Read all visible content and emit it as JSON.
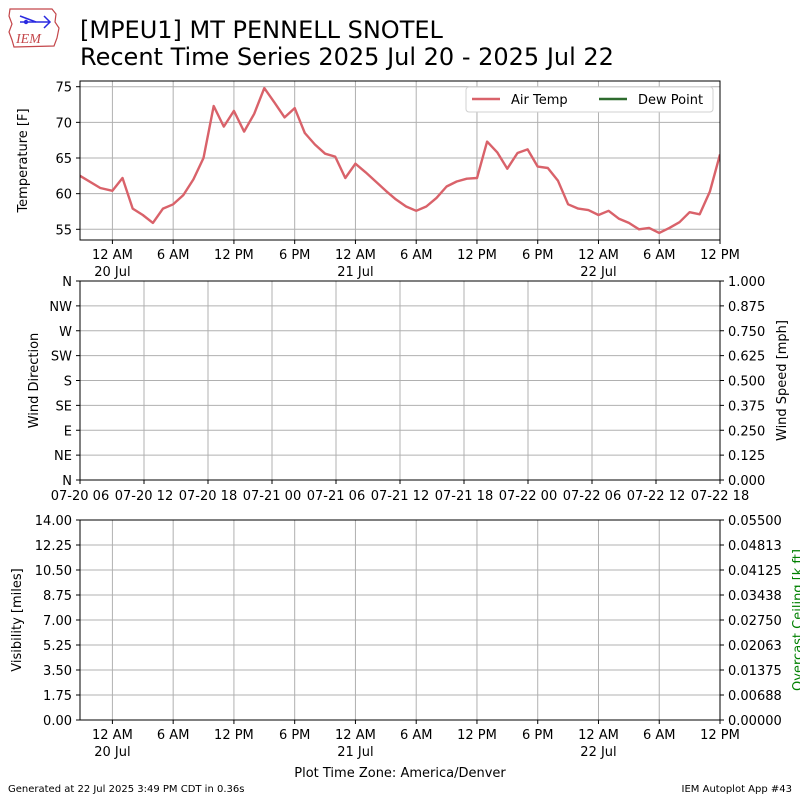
{
  "title": "[MPEU1] MT PENNELL SNOTEL",
  "subtitle": "Recent Time Series 2025 Jul 20 - 2025 Jul 22",
  "logo_text": "IEM",
  "footer_left": "Generated at 22 Jul 2025 3:49 PM CDT in 0.36s",
  "footer_right": "IEM Autoplot App #43",
  "colors": {
    "air_temp": "#d9626a",
    "dew_point": "#2e6b2e",
    "ceiling_label": "#008000",
    "grid": "#b0b0b0"
  },
  "chart_data": [
    {
      "type": "line",
      "ylabel": "Temperature [F]",
      "ylim": [
        53.5,
        75.8
      ],
      "yticks": [
        "55",
        "60",
        "65",
        "70",
        "75"
      ],
      "ytick_values": [
        55,
        60,
        65,
        70,
        75
      ],
      "xlim_hours": [
        -3.2,
        60
      ],
      "xticks": [
        {
          "hour": 0,
          "label": "12 AM",
          "sub": "20 Jul"
        },
        {
          "hour": 6,
          "label": "6 AM",
          "sub": ""
        },
        {
          "hour": 12,
          "label": "12 PM",
          "sub": ""
        },
        {
          "hour": 18,
          "label": "6 PM",
          "sub": ""
        },
        {
          "hour": 24,
          "label": "12 AM",
          "sub": "21 Jul"
        },
        {
          "hour": 30,
          "label": "6 AM",
          "sub": ""
        },
        {
          "hour": 36,
          "label": "12 PM",
          "sub": ""
        },
        {
          "hour": 42,
          "label": "6 PM",
          "sub": ""
        },
        {
          "hour": 48,
          "label": "12 AM",
          "sub": "22 Jul"
        },
        {
          "hour": 54,
          "label": "6 AM",
          "sub": ""
        },
        {
          "hour": 60,
          "label": "12 PM",
          "sub": ""
        }
      ],
      "legend": "top-right",
      "grid": true,
      "series": [
        {
          "name": "Air Temp",
          "hours": [
            -3.2,
            -1.2,
            0,
            1,
            2,
            3,
            4,
            5,
            6,
            7,
            8,
            9,
            10,
            11,
            12,
            13,
            14,
            15,
            16,
            17,
            18,
            19,
            20,
            21,
            22,
            23,
            24,
            25,
            26,
            27,
            28,
            29,
            30,
            31,
            32,
            33,
            34,
            35,
            36,
            37,
            38,
            39,
            40,
            41,
            42,
            43,
            44,
            45,
            46,
            47,
            48,
            49,
            50,
            51,
            52,
            53,
            54,
            55,
            56,
            57,
            58,
            59,
            60
          ],
          "values": [
            62.5,
            60.8,
            60.4,
            62.2,
            57.9,
            57.0,
            55.9,
            57.9,
            58.5,
            59.8,
            62.0,
            65.0,
            72.3,
            69.4,
            71.6,
            68.7,
            71.2,
            74.8,
            72.8,
            70.7,
            72.0,
            68.5,
            66.9,
            65.6,
            65.2,
            62.2,
            64.2,
            63.0,
            61.7,
            60.4,
            59.2,
            58.2,
            57.6,
            58.2,
            59.4,
            61.0,
            61.7,
            62.1,
            62.2,
            67.3,
            65.8,
            63.5,
            65.7,
            66.2,
            63.8,
            63.6,
            61.8,
            58.5,
            57.9,
            57.7,
            57.0,
            57.6,
            56.5,
            55.9,
            55.0,
            55.2,
            54.5,
            55.2,
            56.0,
            57.4,
            57.1,
            60.3,
            65.5
          ]
        },
        {
          "name": "Dew Point",
          "hours": [],
          "values": []
        }
      ]
    },
    {
      "type": "line",
      "ylabel": "Wind Direction",
      "ylabel_right": "Wind Speed [mph]",
      "yticks": [
        "N",
        "NE",
        "E",
        "SE",
        "S",
        "SW",
        "W",
        "NW",
        "N"
      ],
      "yticks_right": [
        "0.000",
        "0.125",
        "0.250",
        "0.375",
        "0.500",
        "0.625",
        "0.750",
        "0.875",
        "1.000"
      ],
      "xticks": [
        "07-20 06",
        "07-20 12",
        "07-20 18",
        "07-21 00",
        "07-21 06",
        "07-21 12",
        "07-21 18",
        "07-22 00",
        "07-22 06",
        "07-22 12",
        "07-22 18"
      ],
      "grid": true,
      "series": []
    },
    {
      "type": "line",
      "ylabel": "Visibility [miles]",
      "ylabel_right": "Overcast Ceiling [k ft]",
      "yticks": [
        "0.00",
        "1.75",
        "3.50",
        "5.25",
        "7.00",
        "8.75",
        "10.50",
        "12.25",
        "14.00"
      ],
      "yticks_right": [
        "0.00000",
        "0.00688",
        "0.01375",
        "0.02063",
        "0.02750",
        "0.03438",
        "0.04125",
        "0.04813",
        "0.05500"
      ],
      "xlabel": "Plot Time Zone: America/Denver",
      "grid": true,
      "series": []
    }
  ]
}
